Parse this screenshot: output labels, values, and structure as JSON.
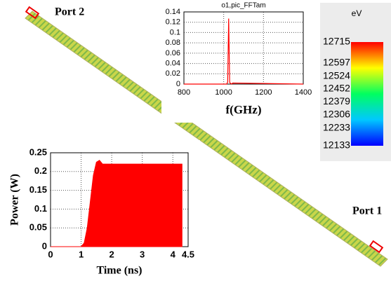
{
  "labels": {
    "port2": "Port 2",
    "port1": "Port 1"
  },
  "colorbar": {
    "title": "eV",
    "lim": [
      12133,
      12715
    ],
    "ticks": [
      12715,
      12597,
      12524,
      12452,
      12379,
      12306,
      12233,
      12133
    ]
  },
  "chart_data": [
    {
      "type": "line",
      "title": "o1,pic_FFTam",
      "x_label": "f(GHz)",
      "x": [
        800,
        1015,
        1020,
        1025,
        1030,
        1040,
        1045,
        1400
      ],
      "values": [
        0,
        0,
        0.004,
        0.127,
        0.003,
        0,
        0.002,
        0
      ],
      "color": "#ff0000",
      "xlim": [
        800,
        1400
      ],
      "xticks": [
        800,
        1000,
        1200,
        1400
      ],
      "ylim": [
        0,
        0.14
      ],
      "yticks": [
        0,
        0.02,
        0.04,
        0.06,
        0.08,
        0.1,
        0.12,
        0.14
      ],
      "grid": true
    },
    {
      "type": "area",
      "x_label": "Time (ns)",
      "y_label": "Power (W)",
      "x": [
        0,
        1,
        1.1,
        1.2,
        1.3,
        1.4,
        1.5,
        1.6,
        1.7,
        4.3,
        4.3
      ],
      "values": [
        0,
        0,
        0.01,
        0.05,
        0.12,
        0.19,
        0.225,
        0.23,
        0.22,
        0.22,
        0
      ],
      "color": "#ff0000",
      "xlim": [
        0,
        4.5
      ],
      "xticks": [
        0,
        1,
        2,
        3,
        4,
        4.5
      ],
      "ylim": [
        0,
        0.25
      ],
      "yticks": [
        0,
        0.05,
        0.1,
        0.15,
        0.2,
        0.25
      ],
      "grid": true
    }
  ]
}
